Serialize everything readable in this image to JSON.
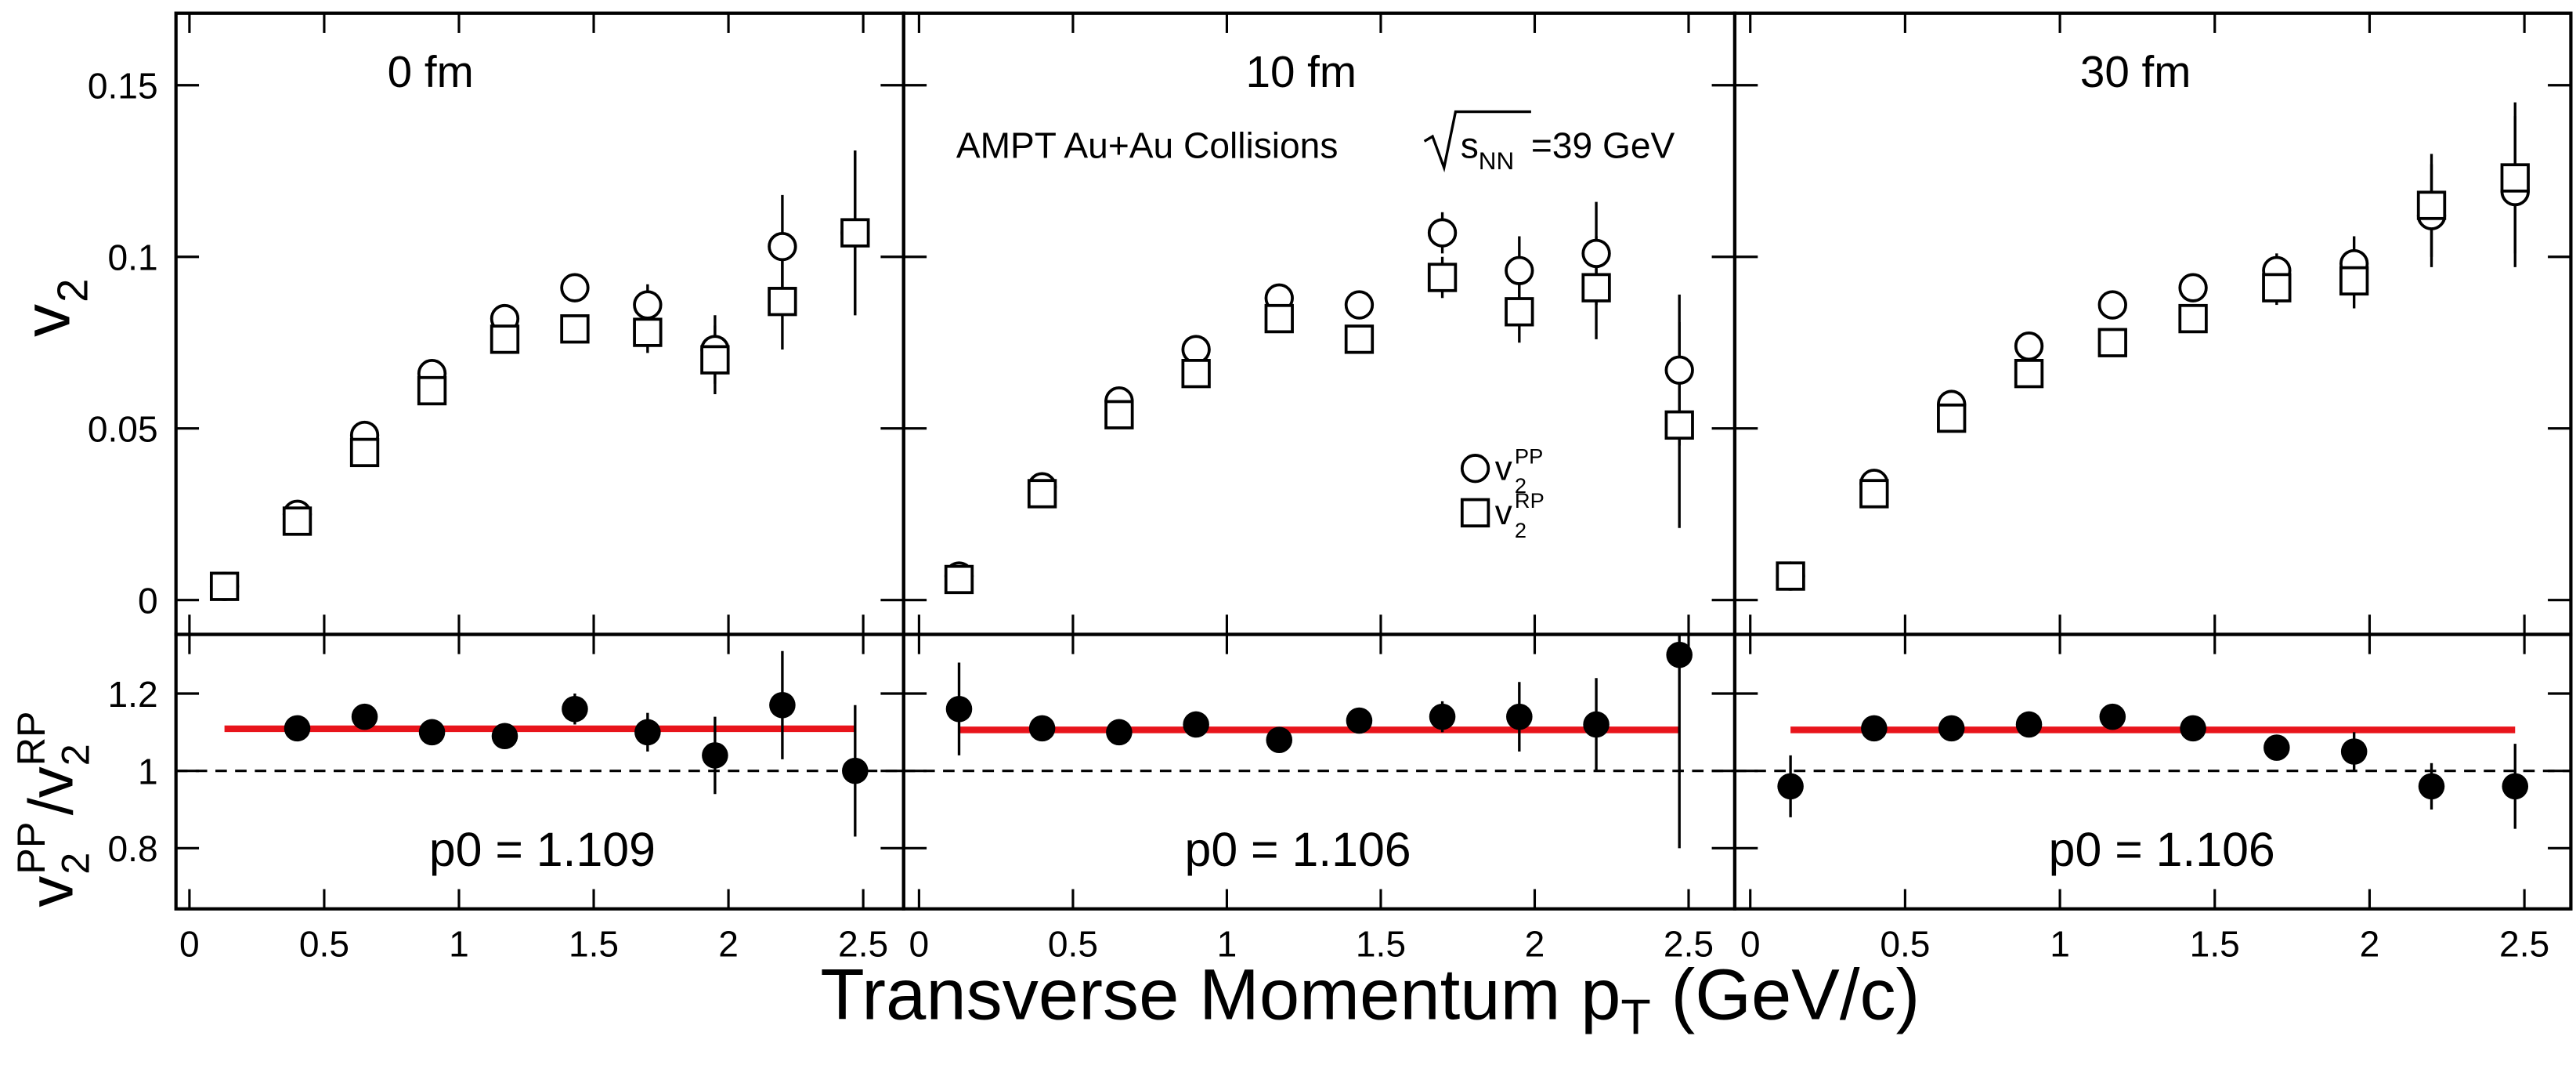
{
  "figure": {
    "ylabel_top": [
      "v",
      "2"
    ],
    "ylabel_bottom": [
      "v",
      "2",
      "PP",
      "/v",
      "2",
      "RP"
    ],
    "xlabel": [
      "Transverse Momentum p",
      "T",
      " (GeV/c)"
    ],
    "annotation": [
      "AMPT Au+Au Collisions",
      "s",
      "NN",
      "=39 GeV"
    ]
  },
  "chart_data": [
    {
      "type": "scatter",
      "title": "0 fm",
      "xlim": [
        -0.05,
        2.65
      ],
      "ylim": [
        -0.01,
        0.171
      ],
      "xticks": [
        0,
        0.5,
        1,
        1.5,
        2,
        2.5
      ],
      "yticks": [
        0,
        0.05,
        0.1,
        0.15
      ],
      "x": [
        0.13,
        0.4,
        0.65,
        0.9,
        1.17,
        1.43,
        1.7,
        1.95,
        2.2,
        2.47
      ],
      "series": [
        {
          "marker": "circle",
          "color": "#000000",
          "values": [
            0.004,
            0.025,
            0.048,
            0.066,
            0.082,
            0.091,
            0.086,
            0.073,
            0.103,
            0.107
          ],
          "errors": [
            0.001,
            0.002,
            0.002,
            0.003,
            0.003,
            0.004,
            0.006,
            0.01,
            0.015,
            0.024
          ]
        },
        {
          "marker": "square",
          "color": "#000000",
          "values": [
            0.004,
            0.023,
            0.043,
            0.061,
            0.076,
            0.079,
            0.078,
            0.07,
            0.087,
            0.107
          ],
          "errors": [
            0.001,
            0.002,
            0.002,
            0.003,
            0.003,
            0.004,
            0.006,
            0.01,
            0.014,
            0.024
          ]
        }
      ]
    },
    {
      "type": "scatter",
      "title": "10 fm",
      "xlim": [
        -0.05,
        2.65
      ],
      "ylim": [
        -0.01,
        0.171
      ],
      "xticks": [
        0,
        0.5,
        1,
        1.5,
        2,
        2.5
      ],
      "yticks": [
        0,
        0.05,
        0.1,
        0.15
      ],
      "x": [
        0.13,
        0.4,
        0.65,
        0.9,
        1.17,
        1.43,
        1.7,
        1.95,
        2.2,
        2.47
      ],
      "series": [
        {
          "name": [
            "v",
            "2",
            "PP"
          ],
          "marker": "circle",
          "color": "#000000",
          "values": [
            0.007,
            0.033,
            0.058,
            0.073,
            0.088,
            0.086,
            0.107,
            0.096,
            0.101,
            0.067
          ],
          "errors": [
            0.001,
            0.002,
            0.002,
            0.003,
            0.003,
            0.004,
            0.006,
            0.01,
            0.015,
            0.022
          ]
        },
        {
          "name": [
            "v",
            "2",
            "RP"
          ],
          "marker": "square",
          "color": "#000000",
          "values": [
            0.006,
            0.031,
            0.054,
            0.066,
            0.082,
            0.076,
            0.094,
            0.084,
            0.091,
            0.051
          ],
          "errors": [
            0.001,
            0.002,
            0.002,
            0.003,
            0.003,
            0.004,
            0.006,
            0.009,
            0.015,
            0.03
          ]
        }
      ]
    },
    {
      "type": "scatter",
      "title": "30 fm",
      "xlim": [
        -0.05,
        2.65
      ],
      "ylim": [
        -0.01,
        0.171
      ],
      "xticks": [
        0,
        0.5,
        1,
        1.5,
        2,
        2.5
      ],
      "yticks": [
        0,
        0.05,
        0.1,
        0.15
      ],
      "x": [
        0.13,
        0.4,
        0.65,
        0.9,
        1.17,
        1.43,
        1.7,
        1.95,
        2.2,
        2.47
      ],
      "series": [
        {
          "marker": "circle",
          "color": "#000000",
          "values": [
            0.007,
            0.034,
            0.057,
            0.074,
            0.086,
            0.091,
            0.096,
            0.098,
            0.112,
            0.119
          ],
          "errors": [
            0.001,
            0.002,
            0.002,
            0.003,
            0.003,
            0.004,
            0.005,
            0.008,
            0.015,
            0.022
          ]
        },
        {
          "marker": "square",
          "color": "#000000",
          "values": [
            0.007,
            0.031,
            0.053,
            0.066,
            0.075,
            0.082,
            0.091,
            0.093,
            0.115,
            0.123
          ],
          "errors": [
            0.001,
            0.002,
            0.002,
            0.003,
            0.003,
            0.004,
            0.005,
            0.008,
            0.015,
            0.022
          ]
        }
      ]
    },
    {
      "type": "ratio",
      "xlim": [
        -0.05,
        2.65
      ],
      "ylim": [
        0.643,
        1.353
      ],
      "xticks": [
        0,
        0.5,
        1,
        1.5,
        2,
        2.5
      ],
      "yticks": [
        0.8,
        1,
        1.2
      ],
      "refline": 1,
      "color": "#000000",
      "x": [
        0.13,
        0.4,
        0.65,
        0.9,
        1.17,
        1.43,
        1.7,
        1.95,
        2.2,
        2.47
      ],
      "values": [
        null,
        1.11,
        1.14,
        1.1,
        1.09,
        1.16,
        1.1,
        1.04,
        1.17,
        1.0
      ],
      "errors": [
        null,
        0.02,
        0.02,
        0.02,
        0.02,
        0.04,
        0.05,
        0.1,
        0.14,
        0.17
      ],
      "fit": {
        "value": 1.109,
        "label": "p0 = 1.109",
        "color": "#e8141b"
      }
    },
    {
      "type": "ratio",
      "xlim": [
        -0.05,
        2.65
      ],
      "ylim": [
        0.643,
        1.353
      ],
      "xticks": [
        0,
        0.5,
        1,
        1.5,
        2,
        2.5
      ],
      "yticks": [
        0.8,
        1,
        1.2
      ],
      "refline": 1,
      "color": "#000000",
      "x": [
        0.13,
        0.4,
        0.65,
        0.9,
        1.17,
        1.43,
        1.7,
        1.95,
        2.2,
        2.47
      ],
      "values": [
        1.16,
        1.11,
        1.1,
        1.12,
        1.08,
        1.13,
        1.14,
        1.14,
        1.12,
        1.3
      ],
      "errors": [
        0.12,
        0.02,
        0.02,
        0.02,
        0.02,
        0.03,
        0.04,
        0.09,
        0.12,
        0.5
      ],
      "fit": {
        "value": 1.106,
        "label": "p0 = 1.106",
        "color": "#e8141b"
      }
    },
    {
      "type": "ratio",
      "xlim": [
        -0.05,
        2.65
      ],
      "ylim": [
        0.643,
        1.353
      ],
      "xticks": [
        0,
        0.5,
        1,
        1.5,
        2,
        2.5
      ],
      "yticks": [
        0.8,
        1,
        1.2
      ],
      "refline": 1,
      "color": "#000000",
      "x": [
        0.13,
        0.4,
        0.65,
        0.9,
        1.17,
        1.43,
        1.7,
        1.95,
        2.2,
        2.47
      ],
      "values": [
        0.96,
        1.11,
        1.11,
        1.12,
        1.14,
        1.11,
        1.06,
        1.05,
        0.96,
        0.96
      ],
      "errors": [
        0.08,
        0.02,
        0.02,
        0.02,
        0.02,
        0.02,
        0.03,
        0.05,
        0.06,
        0.11
      ],
      "fit": {
        "value": 1.106,
        "label": "p0 = 1.106",
        "color": "#e8141b"
      }
    }
  ]
}
